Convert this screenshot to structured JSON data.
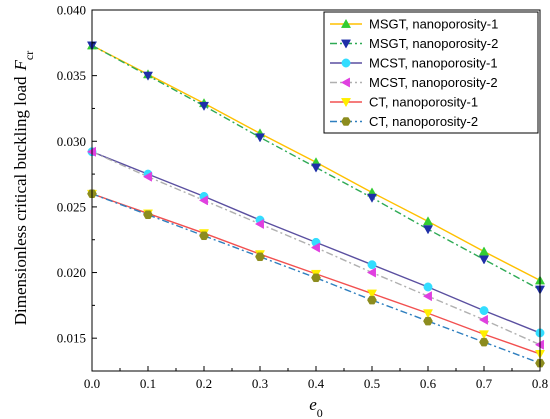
{
  "chart_data": {
    "type": "line",
    "xlabel": "e",
    "xlabel_sub": "0",
    "ylabel": "Dimensionless critical buckling load",
    "ylabel_symbol": "F",
    "ylabel_sub": "cr",
    "xlim": [
      0.0,
      0.8
    ],
    "ylim": [
      0.0125,
      0.04
    ],
    "x_ticks": [
      0.0,
      0.1,
      0.2,
      0.3,
      0.4,
      0.5,
      0.6,
      0.7,
      0.8
    ],
    "x_tick_labels": [
      "0.0",
      "0.1",
      "0.2",
      "0.3",
      "0.4",
      "0.5",
      "0.6",
      "0.7",
      "0.8"
    ],
    "y_ticks": [
      0.015,
      0.02,
      0.025,
      0.03,
      0.035,
      0.04
    ],
    "y_tick_labels": [
      "0.015",
      "0.020",
      "0.025",
      "0.030",
      "0.035",
      "0.040"
    ],
    "grid": false,
    "legend_position": "top-right",
    "x": [
      0.0,
      0.1,
      0.2,
      0.3,
      0.4,
      0.5,
      0.6,
      0.7,
      0.8
    ],
    "series": [
      {
        "name": "MSGT, nanoporosity-1",
        "color": "#FFC000",
        "marker": "triangle-up",
        "marker_color": "#33CC33",
        "dash": "solid",
        "values": [
          0.0373,
          0.0351,
          0.0329,
          0.0306,
          0.0284,
          0.0261,
          0.0239,
          0.0216,
          0.0194
        ]
      },
      {
        "name": "MSGT, nanoporosity-2",
        "color": "#2EAA55",
        "marker": "triangle-down",
        "marker_color": "#1F2FA8",
        "dash": "dashdot",
        "values": [
          0.0373,
          0.035,
          0.0327,
          0.0303,
          0.028,
          0.0257,
          0.0233,
          0.021,
          0.0187
        ]
      },
      {
        "name": "MCST, nanoporosity-1",
        "color": "#5A4FA0",
        "marker": "circle",
        "marker_color": "#33DDFF",
        "dash": "solid",
        "values": [
          0.0292,
          0.0275,
          0.0258,
          0.024,
          0.0223,
          0.0206,
          0.0189,
          0.0171,
          0.0154
        ]
      },
      {
        "name": "MCST, nanoporosity-2",
        "color": "#B0B0B0",
        "marker": "triangle-left",
        "marker_color": "#E040E0",
        "dash": "dashdot",
        "values": [
          0.0292,
          0.0273,
          0.0255,
          0.0237,
          0.0219,
          0.02,
          0.0182,
          0.0164,
          0.0145
        ]
      },
      {
        "name": "CT, nanoporosity-1",
        "color": "#F25050",
        "marker": "triangle-down",
        "marker_color": "#FFEE00",
        "dash": "solid",
        "values": [
          0.026,
          0.0245,
          0.023,
          0.0214,
          0.0199,
          0.0184,
          0.0169,
          0.0153,
          0.0138
        ]
      },
      {
        "name": "CT, nanoporosity-2",
        "color": "#2E7FBF",
        "marker": "hexagon",
        "marker_color": "#8C8C1E",
        "dash": "dashdot",
        "values": [
          0.026,
          0.0244,
          0.0228,
          0.0212,
          0.0196,
          0.0179,
          0.0163,
          0.0147,
          0.0131
        ]
      }
    ]
  }
}
